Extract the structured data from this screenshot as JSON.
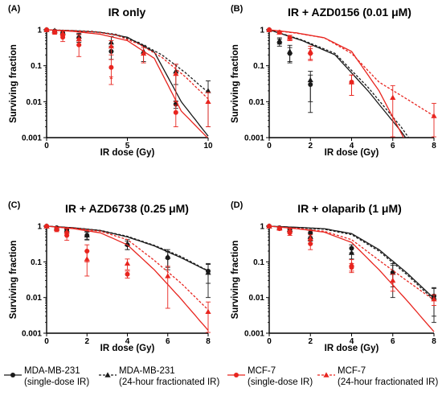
{
  "chart_data": [
    {
      "type": "line",
      "panel_label": "(A)",
      "title": "IR only",
      "xlabel": "IR dose (Gy)",
      "ylabel": "Surviving fraction",
      "y_scale": "log",
      "xlim": [
        0,
        10
      ],
      "ylim": [
        0.001,
        1
      ],
      "xticks": [
        0,
        5,
        10
      ],
      "yticks": [
        "0.001",
        "0.01",
        "0.1",
        "1"
      ],
      "annotations": [
        {
          "text": "*",
          "x": 4,
          "y": 0.045,
          "color": "#e8251f"
        }
      ],
      "series": [
        {
          "series_key": "mda_single",
          "x": [
            0,
            0.5,
            1,
            2,
            4,
            8
          ],
          "y": [
            1,
            0.92,
            0.82,
            0.6,
            0.25,
            0.0085
          ],
          "err": [
            0.02,
            0.06,
            0.1,
            0.15,
            0.1,
            0.002
          ],
          "fit": [
            1,
            0.94,
            0.85,
            0.62,
            0.24,
            0.01,
            0.0011
          ]
        },
        {
          "series_key": "mda_frac",
          "x": [
            0,
            0.5,
            1,
            2,
            4,
            6,
            8,
            10
          ],
          "y": [
            1,
            0.95,
            0.86,
            0.65,
            0.45,
            0.25,
            0.07,
            0.02
          ],
          "err": [
            0.02,
            0.05,
            0.1,
            0.15,
            0.2,
            0.12,
            0.04,
            0.018
          ],
          "fit": [
            1,
            0.96,
            0.9,
            0.75,
            0.44,
            0.2,
            0.065,
            0.018
          ]
        },
        {
          "series_key": "mcf_single",
          "x": [
            0,
            0.5,
            1,
            2,
            4,
            8
          ],
          "y": [
            1,
            0.85,
            0.62,
            0.38,
            0.09,
            0.005
          ],
          "err": [
            0.02,
            0.1,
            0.15,
            0.2,
            0.06,
            0.003
          ],
          "fit": [
            1,
            0.9,
            0.75,
            0.5,
            0.16,
            0.0055,
            0.00095
          ]
        },
        {
          "series_key": "mcf_frac",
          "x": [
            0,
            0.5,
            1,
            2,
            4,
            6,
            8,
            10
          ],
          "y": [
            1,
            0.9,
            0.8,
            0.55,
            0.35,
            0.22,
            0.06,
            0.01
          ],
          "err": [
            0.02,
            0.08,
            0.12,
            0.18,
            0.15,
            0.1,
            0.05,
            0.008
          ],
          "fit": [
            1,
            0.95,
            0.88,
            0.72,
            0.4,
            0.17,
            0.05,
            0.012
          ]
        }
      ]
    },
    {
      "type": "line",
      "panel_label": "(B)",
      "title": "IR + AZD0156 (0.01 μM)",
      "xlabel": "IR dose (Gy)",
      "ylabel": "Surviving fraction",
      "y_scale": "log",
      "xlim": [
        0,
        8
      ],
      "ylim": [
        0.001,
        1
      ],
      "xticks": [
        0,
        2,
        4,
        6,
        8
      ],
      "yticks": [
        "0.001",
        "0.01",
        "0.1",
        "1"
      ],
      "annotations": [],
      "series": [
        {
          "series_key": "mda_single",
          "x": [
            0,
            0.5,
            1,
            2
          ],
          "y": [
            1,
            0.45,
            0.22,
            0.03
          ],
          "err": [
            0.02,
            0.1,
            0.1,
            0.025
          ],
          "fit": [
            1,
            0.5,
            0.2,
            0.02,
            0.0015,
            8e-05
          ]
        },
        {
          "series_key": "mda_frac",
          "x": [
            0,
            0.5,
            1,
            2
          ],
          "y": [
            1,
            0.5,
            0.25,
            0.04
          ],
          "err": [
            0.02,
            0.1,
            0.12,
            0.03
          ],
          "fit": [
            1,
            0.52,
            0.22,
            0.025,
            0.002,
            0.0001
          ]
        },
        {
          "series_key": "mcf_single",
          "x": [
            0,
            0.5,
            1,
            2,
            4
          ],
          "y": [
            1,
            0.85,
            0.6,
            0.22,
            0.035
          ],
          "err": [
            0.02,
            0.08,
            0.1,
            0.08,
            0.02
          ],
          "fit": [
            1,
            0.82,
            0.6,
            0.25,
            0.02,
            0.0007,
            1e-05
          ]
        },
        {
          "series_key": "mcf_frac",
          "x": [
            0,
            0.5,
            1,
            2,
            4,
            6,
            8
          ],
          "y": [
            1,
            0.85,
            0.6,
            0.25,
            0.035,
            0.013,
            0.004
          ],
          "err": [
            0.02,
            0.08,
            0.1,
            0.1,
            0.02,
            0.015,
            0.005
          ],
          "fit": [
            1,
            0.8,
            0.6,
            0.22,
            0.035,
            0.012,
            0.004
          ]
        }
      ]
    },
    {
      "type": "line",
      "panel_label": "(C)",
      "title": "IR + AZD6738 (0.25 μM)",
      "xlabel": "IR dose (Gy)",
      "ylabel": "Surviving fraction",
      "y_scale": "log",
      "xlim": [
        0,
        8
      ],
      "ylim": [
        0.001,
        1
      ],
      "xticks": [
        0,
        2,
        4,
        6,
        8
      ],
      "yticks": [
        "0.001",
        "0.01",
        "0.1",
        "1"
      ],
      "annotations": [],
      "series": [
        {
          "series_key": "mda_single",
          "x": [
            0,
            0.5,
            1,
            2,
            4,
            6,
            8
          ],
          "y": [
            1,
            0.9,
            0.8,
            0.55,
            0.3,
            0.13,
            0.055
          ],
          "err": [
            0.02,
            0.05,
            0.08,
            0.12,
            0.08,
            0.06,
            0.03
          ],
          "fit": [
            1,
            0.9,
            0.75,
            0.5,
            0.28,
            0.13,
            0.055
          ]
        },
        {
          "series_key": "mda_frac",
          "x": [
            0,
            0.5,
            1,
            2,
            4,
            6,
            8
          ],
          "y": [
            1,
            0.88,
            0.78,
            0.56,
            0.32,
            0.14,
            0.05
          ],
          "err": [
            0.02,
            0.05,
            0.1,
            0.15,
            0.1,
            0.08,
            0.04
          ],
          "fit": [
            1,
            0.9,
            0.76,
            0.52,
            0.29,
            0.14,
            0.056
          ]
        },
        {
          "series_key": "mcf_single",
          "x": [
            0,
            0.5,
            1,
            2,
            4
          ],
          "y": [
            1,
            0.8,
            0.55,
            0.2,
            0.045
          ],
          "err": [
            0.02,
            0.1,
            0.15,
            0.1,
            0.01
          ],
          "fit": [
            1,
            0.85,
            0.65,
            0.3,
            0.06,
            0.009,
            0.0012
          ]
        },
        {
          "series_key": "mcf_frac",
          "x": [
            0,
            0.5,
            1,
            2,
            4,
            6,
            8
          ],
          "y": [
            1,
            0.85,
            0.7,
            0.12,
            0.09,
            0.04,
            0.004
          ],
          "err": [
            0.02,
            0.08,
            0.15,
            0.08,
            0.03,
            0.035,
            0.0035
          ],
          "fit": [
            1,
            0.88,
            0.72,
            0.42,
            0.11,
            0.025,
            0.0045
          ]
        }
      ]
    },
    {
      "type": "line",
      "panel_label": "(D)",
      "title": "IR + olaparib (1 μM)",
      "xlabel": "IR dose (Gy)",
      "ylabel": "Surviving fraction",
      "y_scale": "log",
      "xlim": [
        0,
        8
      ],
      "ylim": [
        0.001,
        1
      ],
      "xticks": [
        0,
        2,
        4,
        6,
        8
      ],
      "yticks": [
        "0.001",
        "0.01",
        "0.1",
        "1"
      ],
      "annotations": [],
      "series": [
        {
          "series_key": "mda_single",
          "x": [
            0,
            0.5,
            1,
            2,
            4,
            6,
            8
          ],
          "y": [
            1,
            0.9,
            0.82,
            0.65,
            0.24,
            0.05,
            0.011
          ],
          "err": [
            0.02,
            0.05,
            0.08,
            0.15,
            0.06,
            0.04,
            0.008
          ],
          "fit": [
            1,
            0.93,
            0.85,
            0.62,
            0.22,
            0.05,
            0.0095
          ]
        },
        {
          "series_key": "mda_frac",
          "x": [
            0,
            0.5,
            1,
            2,
            4,
            6,
            8
          ],
          "y": [
            1,
            0.88,
            0.8,
            0.5,
            0.18,
            0.05,
            0.01
          ],
          "err": [
            0.02,
            0.05,
            0.1,
            0.12,
            0.06,
            0.03,
            0.008
          ],
          "fit": [
            1,
            0.92,
            0.82,
            0.58,
            0.2,
            0.045,
            0.0085
          ]
        },
        {
          "series_key": "mcf_single",
          "x": [
            0,
            0.5,
            1,
            2,
            4
          ],
          "y": [
            1,
            0.85,
            0.65,
            0.32,
            0.07
          ],
          "err": [
            0.02,
            0.08,
            0.1,
            0.1,
            0.02
          ],
          "fit": [
            1,
            0.85,
            0.68,
            0.35,
            0.06,
            0.0085,
            0.0011
          ]
        },
        {
          "series_key": "mcf_frac",
          "x": [
            0,
            0.5,
            1,
            2,
            4,
            6,
            8
          ],
          "y": [
            1,
            0.88,
            0.75,
            0.45,
            0.085,
            0.03,
            0.009
          ],
          "err": [
            0.02,
            0.05,
            0.1,
            0.12,
            0.03,
            0.015,
            0.003
          ],
          "fit": [
            1,
            0.87,
            0.72,
            0.42,
            0.11,
            0.03,
            0.0085
          ]
        }
      ]
    }
  ],
  "series_styles": {
    "mda_single": {
      "color": "#1a1a1a",
      "marker": "circle",
      "dashed": false
    },
    "mda_frac": {
      "color": "#1a1a1a",
      "marker": "triangle",
      "dashed": true
    },
    "mcf_single": {
      "color": "#e8251f",
      "marker": "circle",
      "dashed": false
    },
    "mcf_frac": {
      "color": "#e8251f",
      "marker": "triangle",
      "dashed": true
    }
  },
  "legend": [
    {
      "series_key": "mda_single",
      "line1": "MDA-MB-231",
      "line2": "(single-dose IR)"
    },
    {
      "series_key": "mda_frac",
      "line1": "MDA-MB-231",
      "line2": "(24-hour fractionated IR)"
    },
    {
      "series_key": "mcf_single",
      "line1": "MCF-7",
      "line2": "(single-dose IR)"
    },
    {
      "series_key": "mcf_frac",
      "line1": "MCF-7",
      "line2": "(24-hour fractionated IR)"
    }
  ]
}
